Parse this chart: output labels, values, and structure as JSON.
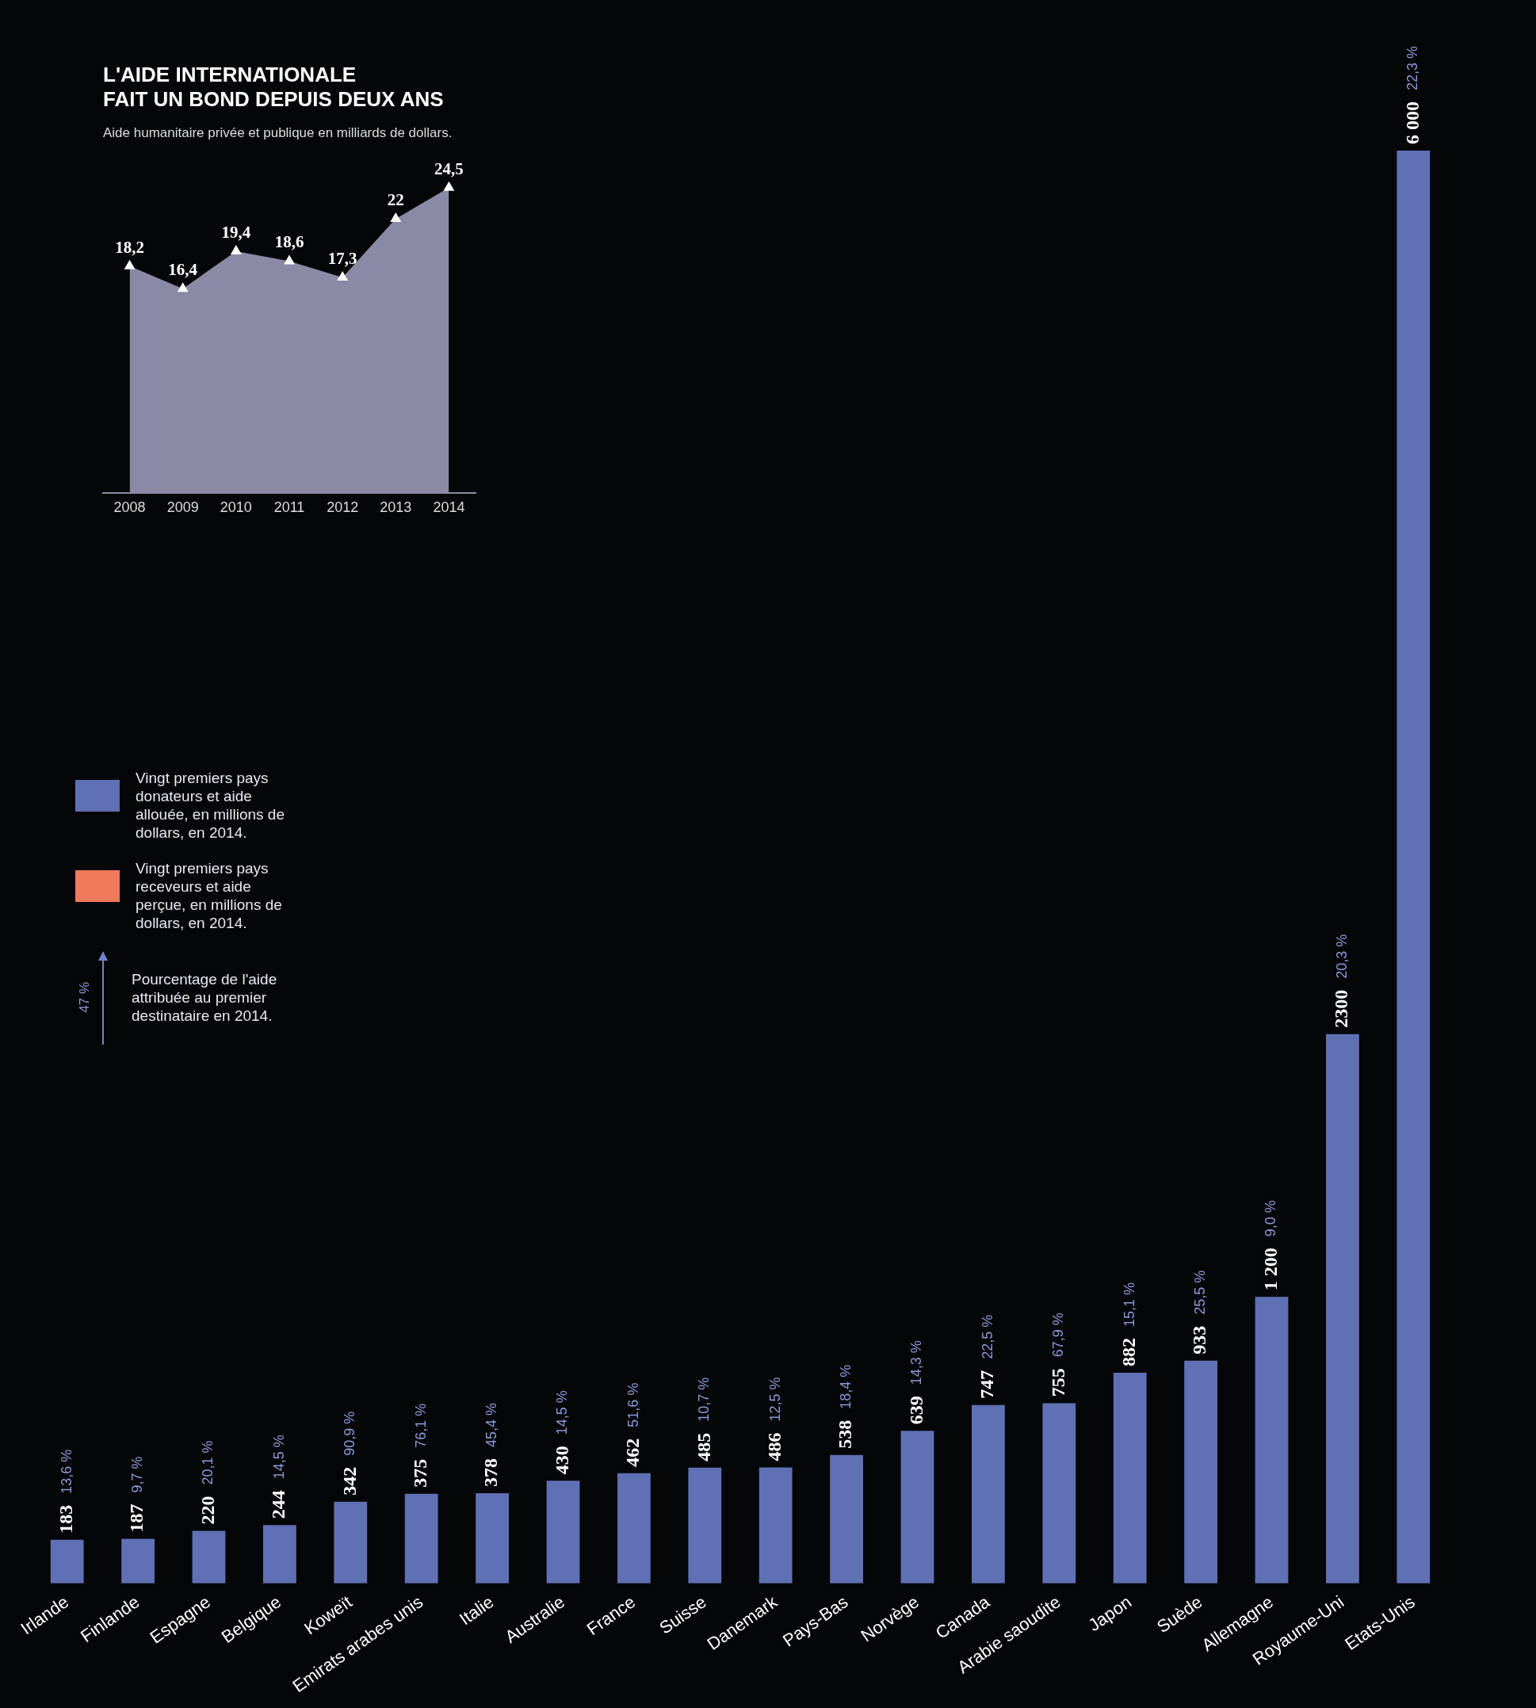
{
  "chart_data": [
    {
      "type": "area",
      "title": "L'AIDE INTERNATIONALE\nFAIT UN BOND DEPUIS DEUX ANS",
      "subtitle": "Aide humanitaire privée et publique en milliards de dollars.",
      "categories": [
        "2008",
        "2009",
        "2010",
        "2011",
        "2012",
        "2013",
        "2014"
      ],
      "values": [
        18.2,
        16.4,
        19.4,
        18.6,
        17.3,
        22,
        24.5
      ],
      "value_labels": [
        "18,2",
        "16,4",
        "19,4",
        "18,6",
        "17,3",
        "22",
        "24,5"
      ],
      "color": "#8a8aa6",
      "marker": "triangle",
      "tick_labels": "x",
      "legend": false
    },
    {
      "type": "bar",
      "categories": [
        "Irlande",
        "Finlande",
        "Espagne",
        "Belgique",
        "Koweït",
        "Emirats arabes unis",
        "Italie",
        "Australie",
        "France",
        "Suisse",
        "Danemark",
        "Pays-Bas",
        "Norvège",
        "Canada",
        "Arabie saoudite",
        "Japon",
        "Suède",
        "Allemagne",
        "Royaume-Uni",
        "Etats-Unis"
      ],
      "series": [
        {
          "name": "Vingt premiers pays donateurs et aide allouée, en millions de dollars, en 2014.",
          "color": "#6070b4",
          "values": [
            183,
            187,
            220,
            244,
            342,
            375,
            378,
            430,
            462,
            485,
            486,
            538,
            639,
            747,
            755,
            882,
            933,
            1200,
            2300,
            6000
          ],
          "value_labels": [
            "183",
            "187",
            "220",
            "244",
            "342",
            "375",
            "378",
            "430",
            "462",
            "485",
            "486",
            "538",
            "639",
            "747",
            "755",
            "882",
            "933",
            "1 200",
            "2300",
            "6 000"
          ]
        },
        {
          "name": "Vingt premiers pays receveurs et aide perçue, en millions de dollars, en 2014.",
          "color": "#f07a5c",
          "values": [
            null,
            null,
            null,
            null,
            null,
            null,
            null,
            null,
            null,
            null,
            null,
            null,
            null,
            null,
            null,
            null,
            null,
            null,
            null,
            null
          ]
        }
      ],
      "annotations": [
        "13,6 %",
        "9,7 %",
        "20,1 %",
        "14,5 %",
        "90,9 %",
        "76,1 %",
        "45,4 %",
        "14,5 %",
        "51,6 %",
        "10,7 %",
        "12,5 %",
        "18,4 %",
        "14,3 %",
        "22,5 %",
        "67,9 %",
        "15,1 %",
        "25,5 %",
        "9,0 %",
        "20,3 %",
        "22,3 %",
        "47 %",
        "Pourcentage de l'aide attribuée au premier destinataire en 2014."
      ],
      "tick_labels": "x",
      "legend": "left"
    }
  ]
}
